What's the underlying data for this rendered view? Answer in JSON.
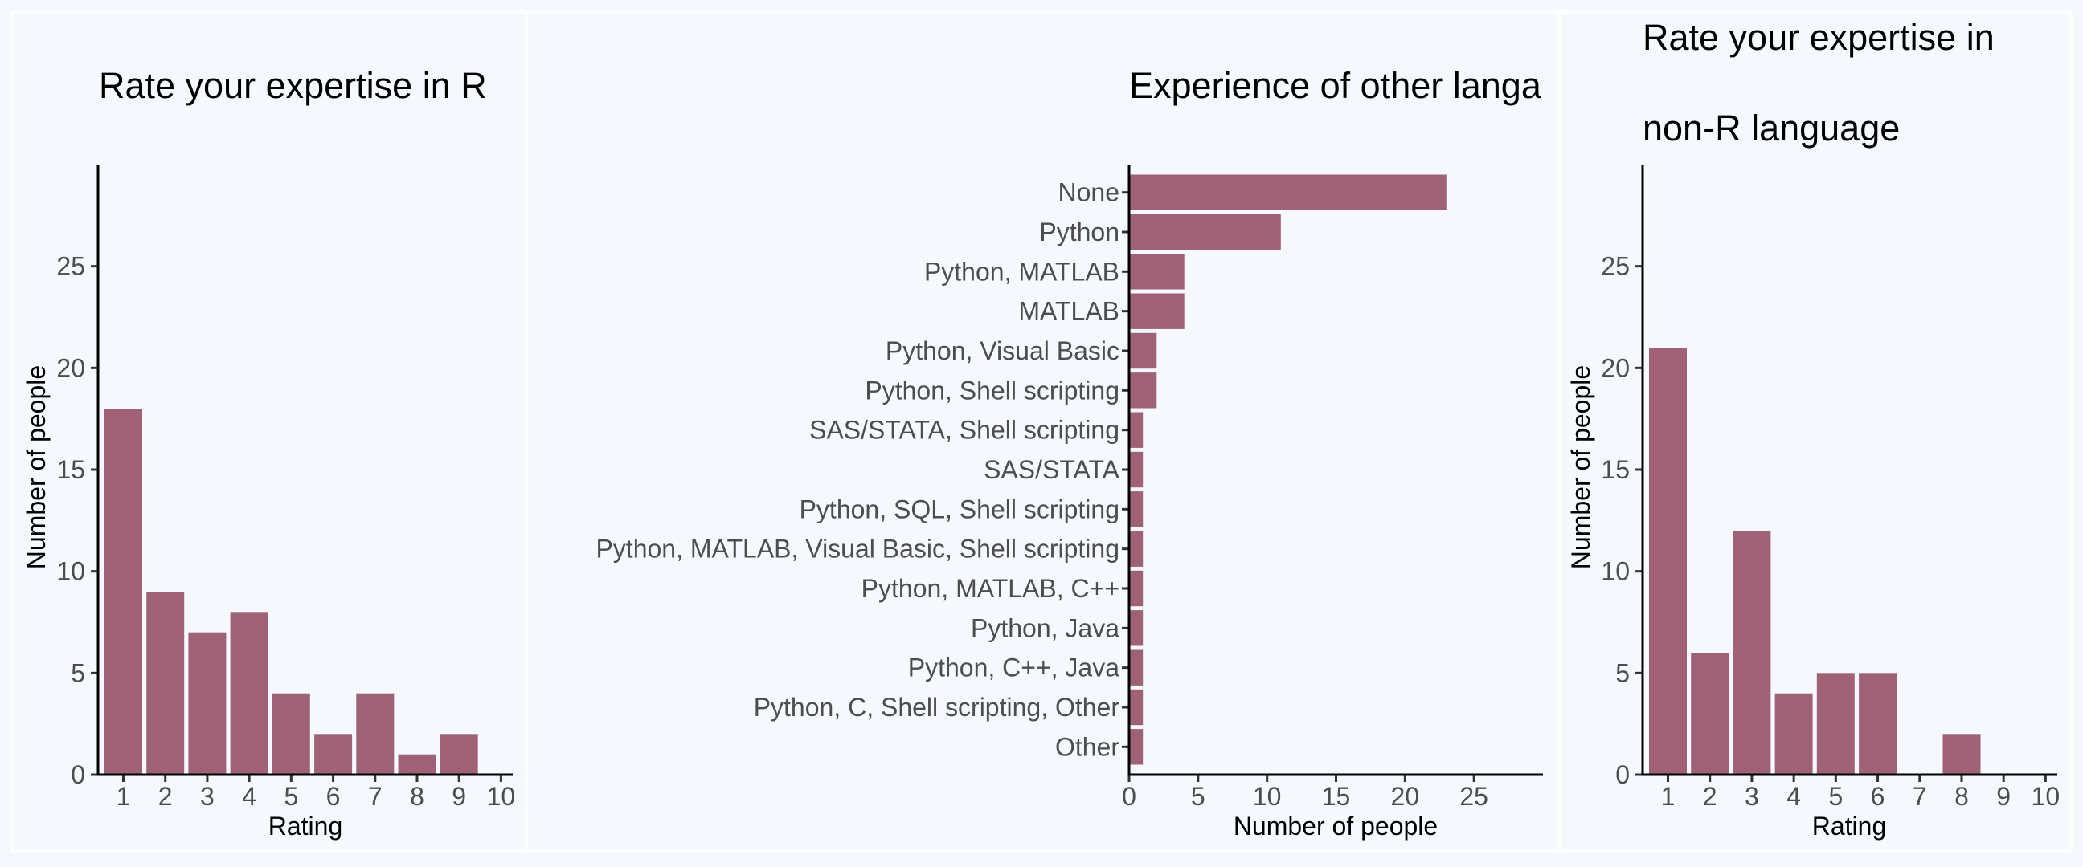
{
  "chart_data": [
    {
      "type": "bar",
      "title": "Rate your expertise in R",
      "xlabel": "Rating",
      "ylabel": "Number of people",
      "categories": [
        "1",
        "2",
        "3",
        "4",
        "5",
        "6",
        "7",
        "8",
        "9"
      ],
      "values": [
        18,
        9,
        7,
        8,
        4,
        2,
        4,
        1,
        2
      ],
      "x_ticks": [
        "1",
        "2",
        "3",
        "4",
        "5",
        "6",
        "7",
        "8",
        "9",
        "10"
      ],
      "y_ticks": [
        0,
        5,
        10,
        15,
        20,
        25
      ],
      "ylim": [
        0,
        30
      ],
      "bar_color": "#9e6175"
    },
    {
      "type": "bar",
      "orientation": "horizontal",
      "title": "Experience of other langa",
      "xlabel": "Number of people",
      "ylabel": "",
      "categories": [
        "None",
        "Python",
        "Python, MATLAB",
        "MATLAB",
        "Python, Visual Basic",
        "Python, Shell scripting",
        "SAS/STATA, Shell scripting",
        "SAS/STATA",
        "Python, SQL, Shell scripting",
        "Python, MATLAB, Visual Basic, Shell scripting",
        "Python, MATLAB, C++",
        "Python, Java",
        "Python, C++, Java",
        "Python, C, Shell scripting, Other",
        "Other"
      ],
      "values": [
        23,
        11,
        4,
        4,
        2,
        2,
        1,
        1,
        1,
        1,
        1,
        1,
        1,
        1,
        1
      ],
      "x_ticks": [
        0,
        5,
        10,
        15,
        20,
        25
      ],
      "xlim": [
        0,
        30
      ],
      "bar_color": "#9e6175"
    },
    {
      "type": "bar",
      "title": "Rate your expertise in",
      "title_line2": "non-R language",
      "xlabel": "Rating",
      "ylabel": "Number of people",
      "categories": [
        "1",
        "2",
        "3",
        "4",
        "5",
        "6",
        "7",
        "8",
        "9"
      ],
      "values": [
        21,
        6,
        12,
        4,
        5,
        5,
        0,
        2,
        0
      ],
      "x_ticks": [
        "1",
        "2",
        "3",
        "4",
        "5",
        "6",
        "7",
        "8",
        "9",
        "10"
      ],
      "y_ticks": [
        0,
        5,
        10,
        15,
        20,
        25
      ],
      "ylim": [
        0,
        30
      ],
      "bar_color": "#9e6175"
    }
  ]
}
